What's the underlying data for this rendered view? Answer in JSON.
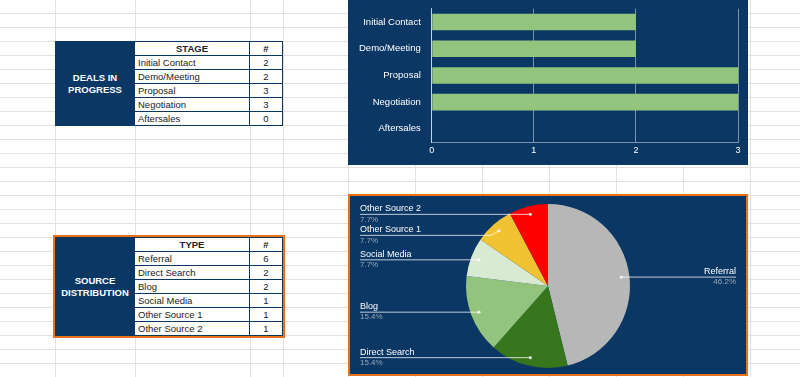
{
  "tables": [
    {
      "title": "DEALS IN PROGRESS",
      "columns": [
        "STAGE",
        "#"
      ],
      "rows": [
        [
          "Initial Contact",
          2
        ],
        [
          "Demo/Meeting",
          2
        ],
        [
          "Proposal",
          3
        ],
        [
          "Negotiation",
          3
        ],
        [
          "Aftersales",
          0
        ]
      ]
    },
    {
      "title": "SOURCE DISTRIBUTION",
      "columns": [
        "TYPE",
        "#"
      ],
      "rows": [
        [
          "Referral",
          6
        ],
        [
          "Direct Search",
          2
        ],
        [
          "Blog",
          2
        ],
        [
          "Social Media",
          1
        ],
        [
          "Other Source 1",
          1
        ],
        [
          "Other Source 2",
          1
        ]
      ]
    }
  ],
  "chart_data": [
    {
      "type": "bar",
      "orientation": "horizontal",
      "categories": [
        "Initial Contact",
        "Demo/Meeting",
        "Proposal",
        "Negotiation",
        "Aftersales"
      ],
      "values": [
        2,
        2,
        3,
        3,
        0
      ],
      "color": "#93c47d",
      "xlim": [
        0,
        3
      ],
      "xticks": [
        0,
        1,
        2,
        3
      ],
      "grid": true
    },
    {
      "type": "pie",
      "categories": [
        "Referral",
        "Direct Search",
        "Blog",
        "Social Media",
        "Other Source 1",
        "Other Source 2"
      ],
      "values": [
        46.2,
        15.4,
        15.4,
        7.7,
        7.7,
        7.7
      ],
      "value_labels": [
        "46.2%",
        "15.4%",
        "15.4%",
        "7.7%",
        "7.7%",
        "7.7%"
      ],
      "colors": [
        "#b7b7b7",
        "#38761d",
        "#93c47d",
        "#d9ead3",
        "#f1c232",
        "#ff0000"
      ],
      "data_labels": true
    }
  ]
}
